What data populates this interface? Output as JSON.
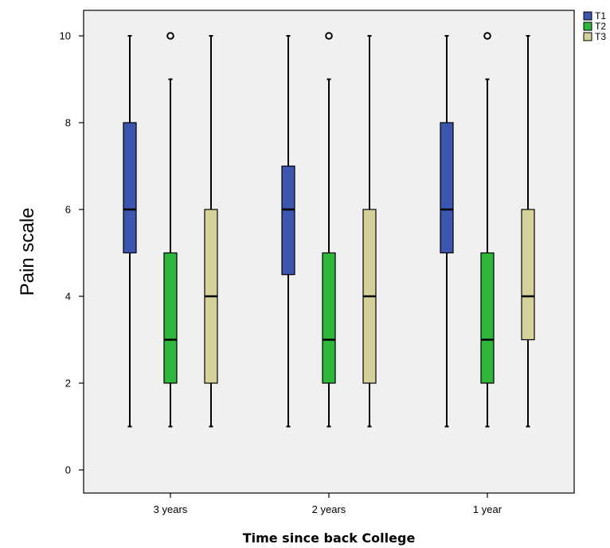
{
  "chart_data": {
    "type": "boxplot",
    "xlabel": "Time since back College",
    "ylabel": "Pain scale",
    "ylim": [
      -0.6,
      10.6
    ],
    "yticks": [
      0,
      2,
      4,
      6,
      8,
      10
    ],
    "grid": false,
    "legend_position": "top-right",
    "categories": [
      "3 years",
      "2 years",
      "1 year"
    ],
    "series": [
      {
        "name": "T1",
        "color": "#3c56b0",
        "boxes": [
          {
            "min": 1,
            "q1": 5,
            "median": 6,
            "q3": 8,
            "max": 10,
            "outliers": []
          },
          {
            "min": 1,
            "q1": 4.5,
            "median": 6,
            "q3": 7,
            "max": 10,
            "outliers": []
          },
          {
            "min": 1,
            "q1": 5,
            "median": 6,
            "q3": 8,
            "max": 10,
            "outliers": []
          }
        ]
      },
      {
        "name": "T2",
        "color": "#2fb63c",
        "boxes": [
          {
            "min": 1,
            "q1": 2,
            "median": 3,
            "q3": 5,
            "max": 9,
            "outliers": [
              10
            ]
          },
          {
            "min": 1,
            "q1": 2,
            "median": 3,
            "q3": 5,
            "max": 9,
            "outliers": [
              10
            ]
          },
          {
            "min": 1,
            "q1": 2,
            "median": 3,
            "q3": 5,
            "max": 9,
            "outliers": [
              10
            ]
          }
        ]
      },
      {
        "name": "T3",
        "color": "#d6d09a",
        "boxes": [
          {
            "min": 1,
            "q1": 2,
            "median": 4,
            "q3": 6,
            "max": 10,
            "outliers": []
          },
          {
            "min": 1,
            "q1": 2,
            "median": 4,
            "q3": 6,
            "max": 10,
            "outliers": []
          },
          {
            "min": 1,
            "q1": 3,
            "median": 4,
            "q3": 6,
            "max": 10,
            "outliers": []
          }
        ]
      }
    ]
  }
}
